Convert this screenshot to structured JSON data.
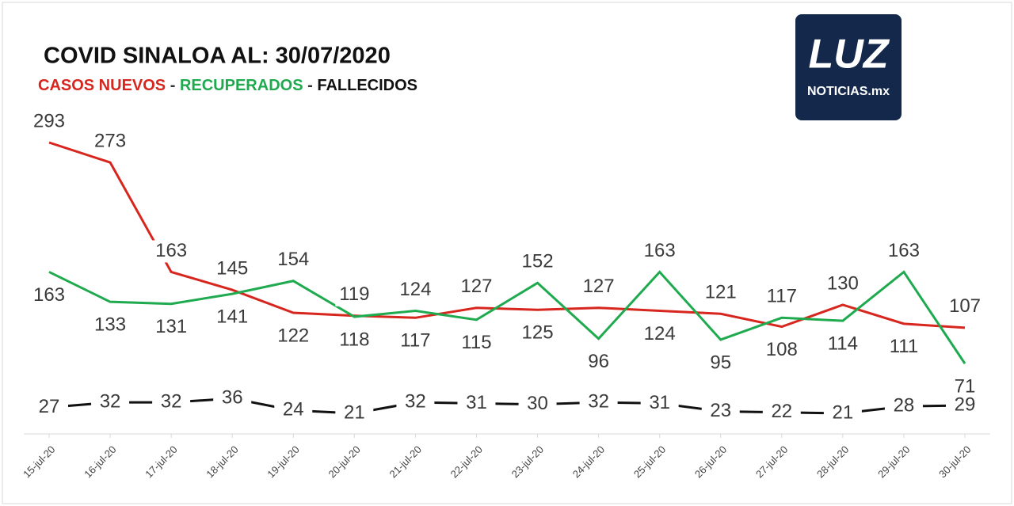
{
  "chart_data": {
    "type": "line",
    "title": "COVID SINALOA AL: 30/07/2020",
    "legend_separator": "-",
    "categories": [
      "15-jul-20",
      "16-jul-20",
      "17-jul-20",
      "18-jul-20",
      "19-jul-20",
      "20-jul-20",
      "21-jul-20",
      "22-jul-20",
      "23-jul-20",
      "24-jul-20",
      "25-jul-20",
      "26-jul-20",
      "27-jul-20",
      "28-jul-20",
      "29-jul-20",
      "30-jul-20"
    ],
    "series": [
      {
        "name": "CASOS NUEVOS",
        "color": "#d7261e",
        "values": [
          293,
          273,
          163,
          145,
          122,
          119,
          117,
          127,
          125,
          127,
          124,
          121,
          108,
          130,
          111,
          107
        ]
      },
      {
        "name": "RECUPERADOS",
        "color": "#1faa4f",
        "values": [
          163,
          133,
          131,
          141,
          154,
          118,
          124,
          115,
          152,
          96,
          163,
          95,
          117,
          114,
          163,
          71
        ]
      },
      {
        "name": "FALLECIDOS",
        "color": "#111111",
        "values": [
          27,
          32,
          32,
          36,
          24,
          21,
          32,
          31,
          30,
          32,
          31,
          23,
          22,
          21,
          28,
          29
        ]
      }
    ],
    "data_labels": true
  },
  "logo": {
    "text": "LUZ",
    "subtext": "NOTICIAS.mx"
  }
}
